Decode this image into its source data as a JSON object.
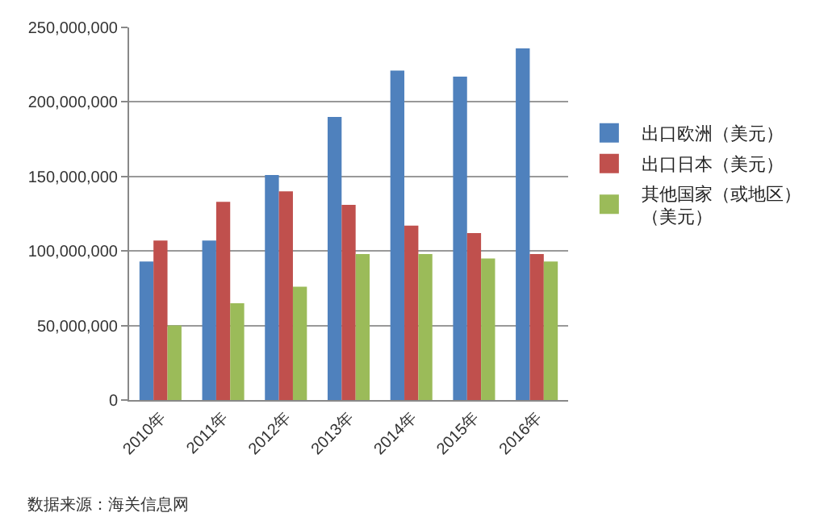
{
  "chart_data": {
    "type": "bar",
    "categories": [
      "2010年",
      "2011年",
      "2012年",
      "2013年",
      "2014年",
      "2015年",
      "2016年"
    ],
    "series": [
      {
        "name": "出口欧洲（美元）",
        "color": "#4f81bd",
        "values": [
          93000000,
          107000000,
          151000000,
          190000000,
          221000000,
          217000000,
          236000000
        ]
      },
      {
        "name": "出口日本（美元）",
        "color": "#c0504d",
        "values": [
          107000000,
          133000000,
          140000000,
          131000000,
          117000000,
          112000000,
          98000000
        ]
      },
      {
        "name": "其他国家（或地区）（美元）",
        "color": "#9bbb59",
        "values": [
          50000000,
          65000000,
          76000000,
          98000000,
          98000000,
          95000000,
          93000000
        ]
      }
    ],
    "ylim": [
      0,
      250000000
    ],
    "yticks": [
      {
        "value": 0,
        "label": "0"
      },
      {
        "value": 50000000,
        "label": "50,000,000"
      },
      {
        "value": 100000000,
        "label": "100,000,000"
      },
      {
        "value": 150000000,
        "label": "150,000,000"
      },
      {
        "value": 200000000,
        "label": "200,000,000"
      },
      {
        "value": 250000000,
        "label": "250,000,000"
      }
    ],
    "grid": "y",
    "legend": "right",
    "annotations": [
      "数据来源：海关信息网"
    ]
  }
}
